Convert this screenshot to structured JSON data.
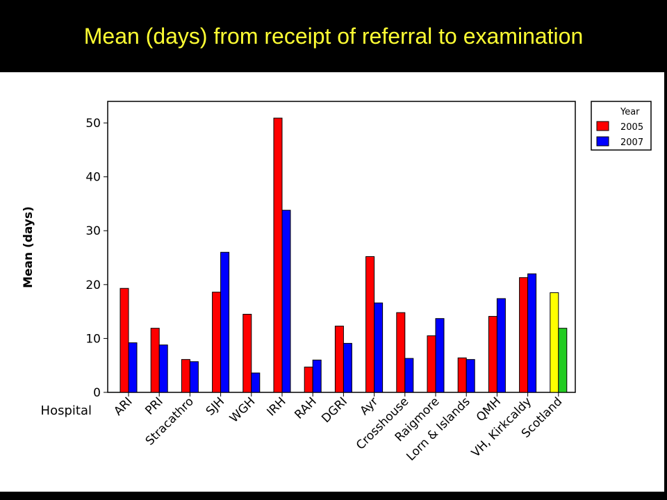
{
  "slide": {
    "title": "Mean (days) from receipt of referral to examination",
    "title_color": "#ffff33",
    "background": "#000000"
  },
  "chart_data": {
    "type": "bar",
    "xlabel": "Hospital",
    "ylabel": "Mean (days)",
    "ylim": [
      0,
      54
    ],
    "yticks": [
      0,
      10,
      20,
      30,
      40,
      50
    ],
    "grid": false,
    "legend": {
      "title": "Year",
      "placement": "top-right",
      "entries": [
        {
          "label": "2005",
          "color": "#ff0000"
        },
        {
          "label": "2007",
          "color": "#0000ff"
        }
      ]
    },
    "categories": [
      "ARI",
      "PRI",
      "Stracathro",
      "SJH",
      "WGH",
      "IRH",
      "RAH",
      "DGRI",
      "Ayr",
      "Crosshouse",
      "Raigmore",
      "Lorn & Islands",
      "QMH",
      "VH, Kirkcaldy",
      "Scotland"
    ],
    "series": [
      {
        "name": "2005",
        "color": "#ff0000",
        "values": [
          19.3,
          11.9,
          6.1,
          18.6,
          14.5,
          50.9,
          4.7,
          12.3,
          25.2,
          14.8,
          10.5,
          6.4,
          14.1,
          21.3,
          18.5
        ]
      },
      {
        "name": "2007",
        "color": "#0000ff",
        "values": [
          9.2,
          8.8,
          5.7,
          26.0,
          3.6,
          33.8,
          6.0,
          9.1,
          16.6,
          6.3,
          13.7,
          6.1,
          17.4,
          22.0,
          11.9
        ]
      }
    ],
    "highlight": {
      "category": "Scotland",
      "colors": [
        "#ffff00",
        "#22cc22"
      ]
    }
  }
}
